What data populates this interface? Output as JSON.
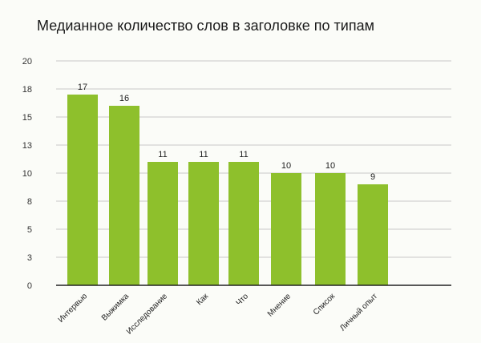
{
  "chart_data": {
    "type": "bar",
    "title": "Медианное количество слов в заголовке по типам",
    "xlabel": "",
    "ylabel": "",
    "ylim": [
      0,
      20
    ],
    "yticks": [
      "0",
      "3",
      "5",
      "8",
      "10",
      "13",
      "15",
      "18",
      "20"
    ],
    "grid": true,
    "categories": [
      "Интервью",
      "Выжимка",
      "Исследование",
      "Как",
      "Что",
      "Мнение",
      "Список",
      "Личный опыт"
    ],
    "values": [
      17,
      16,
      11,
      11,
      11,
      10,
      10,
      9
    ],
    "bar_color": "#8ec02c",
    "grid_color": "#c9c9c9",
    "axis_color": "#222222"
  }
}
